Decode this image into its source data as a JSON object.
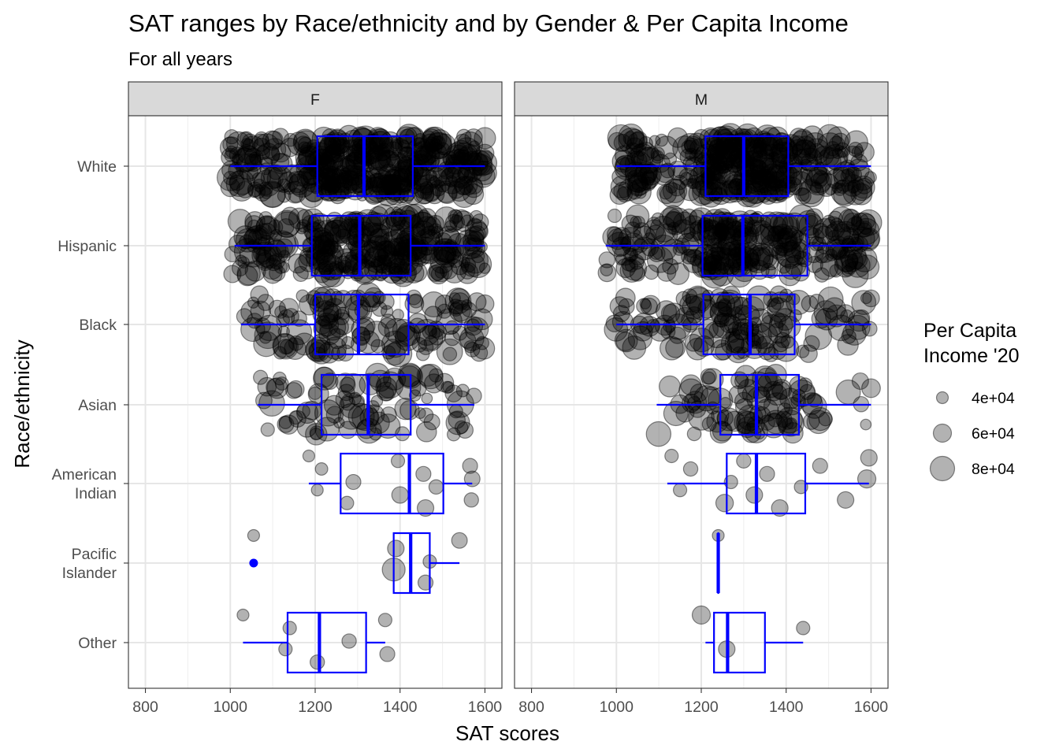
{
  "chart_data": {
    "type": "scatter",
    "overlay": "boxplot",
    "title": "SAT ranges by Race/ethnicity and by Gender & Per Capita Income",
    "subtitle": "For all years",
    "xlabel": "SAT scores",
    "ylabel": "Race/ethnicity",
    "xlim": [
      760,
      1640
    ],
    "x_ticks": [
      800,
      1000,
      1200,
      1400,
      1600
    ],
    "categories": [
      "White",
      "Hispanic",
      "Black",
      "Asian",
      "American Indian",
      "Pacific Islander",
      "Other"
    ],
    "category_labels": [
      [
        "White"
      ],
      [
        "Hispanic"
      ],
      [
        "Black"
      ],
      [
        "Asian"
      ],
      [
        "American",
        "Indian"
      ],
      [
        "Pacific",
        "Islander"
      ],
      [
        "Other"
      ]
    ],
    "grid": true,
    "point_color": "#000000",
    "point_opacity": 0.3,
    "box_color": "#0000ff",
    "legend": {
      "title_lines": [
        "Per Capita",
        "Income '20"
      ],
      "position": "right",
      "entries": [
        {
          "label": "4e+04",
          "value": 40000
        },
        {
          "label": "6e+04",
          "value": 60000
        },
        {
          "label": "8e+04",
          "value": 80000
        }
      ]
    },
    "panels": [
      {
        "name": "F",
        "boxes": [
          {
            "category": "White",
            "whisker_low": 1000,
            "q1": 1205,
            "median": 1315,
            "q3": 1430,
            "whisker_high": 1600,
            "outliers": []
          },
          {
            "category": "Hispanic",
            "whisker_low": 1010,
            "q1": 1192,
            "median": 1305,
            "q3": 1425,
            "whisker_high": 1600,
            "outliers": []
          },
          {
            "category": "Black",
            "whisker_low": 1025,
            "q1": 1200,
            "median": 1302,
            "q3": 1420,
            "whisker_high": 1600,
            "outliers": []
          },
          {
            "category": "Asian",
            "whisker_low": 1065,
            "q1": 1215,
            "median": 1325,
            "q3": 1425,
            "whisker_high": 1575,
            "outliers": []
          },
          {
            "category": "American Indian",
            "whisker_low": 1185,
            "q1": 1260,
            "median": 1422,
            "q3": 1502,
            "whisker_high": 1570,
            "outliers": []
          },
          {
            "category": "Pacific Islander",
            "whisker_low": 1385,
            "q1": 1385,
            "median": 1425,
            "q3": 1470,
            "whisker_high": 1540,
            "outliers": [
              1055
            ]
          },
          {
            "category": "Other",
            "whisker_low": 1030,
            "q1": 1135,
            "median": 1210,
            "q3": 1320,
            "whisker_high": 1365,
            "outliers": []
          }
        ],
        "points": {
          "White": {
            "n": 420,
            "min": 1000,
            "max": 1600
          },
          "Hispanic": {
            "n": 320,
            "min": 1005,
            "max": 1600
          },
          "Black": {
            "n": 150,
            "min": 1025,
            "max": 1600
          },
          "Asian": {
            "n": 95,
            "min": 1060,
            "max": 1580
          },
          "American Indian": {
            "explicit": [
              [
                1185,
                40000
              ],
              [
                1205,
                40000
              ],
              [
                1215,
                42000
              ],
              [
                1275,
                45000
              ],
              [
                1290,
                50000
              ],
              [
                1395,
                45000
              ],
              [
                1400,
                55000
              ],
              [
                1455,
                50000
              ],
              [
                1460,
                55000
              ],
              [
                1485,
                48000
              ],
              [
                1565,
                50000
              ],
              [
                1568,
                48000
              ],
              [
                1570,
                52000
              ]
            ]
          },
          "Pacific Islander": {
            "explicit": [
              [
                1055,
                40000
              ],
              [
                1385,
                75000
              ],
              [
                1390,
                55000
              ],
              [
                1460,
                50000
              ],
              [
                1470,
                45000
              ],
              [
                1540,
                52000
              ]
            ]
          },
          "Other": {
            "explicit": [
              [
                1030,
                40000
              ],
              [
                1130,
                45000
              ],
              [
                1140,
                45000
              ],
              [
                1205,
                48000
              ],
              [
                1280,
                48000
              ],
              [
                1365,
                45000
              ],
              [
                1370,
                50000
              ]
            ]
          }
        }
      },
      {
        "name": "M",
        "boxes": [
          {
            "category": "White",
            "whisker_low": 1000,
            "q1": 1210,
            "median": 1300,
            "q3": 1405,
            "whisker_high": 1600,
            "outliers": []
          },
          {
            "category": "Hispanic",
            "whisker_low": 975,
            "q1": 1203,
            "median": 1298,
            "q3": 1450,
            "whisker_high": 1600,
            "outliers": []
          },
          {
            "category": "Black",
            "whisker_low": 1000,
            "q1": 1205,
            "median": 1315,
            "q3": 1420,
            "whisker_high": 1600,
            "outliers": []
          },
          {
            "category": "Asian",
            "whisker_low": 1095,
            "q1": 1245,
            "median": 1330,
            "q3": 1430,
            "whisker_high": 1600,
            "outliers": []
          },
          {
            "category": "American Indian",
            "whisker_low": 1120,
            "q1": 1260,
            "median": 1330,
            "q3": 1445,
            "whisker_high": 1595,
            "outliers": []
          },
          {
            "category": "Pacific Islander",
            "whisker_low": 1240,
            "q1": 1240,
            "median": 1240,
            "q3": 1240,
            "whisker_high": 1240,
            "outliers": []
          },
          {
            "category": "Other",
            "whisker_low": 1210,
            "q1": 1230,
            "median": 1262,
            "q3": 1350,
            "whisker_high": 1440,
            "outliers": []
          }
        ],
        "points": {
          "White": {
            "n": 380,
            "min": 980,
            "max": 1600
          },
          "Hispanic": {
            "n": 300,
            "min": 975,
            "max": 1600
          },
          "Black": {
            "n": 150,
            "min": 995,
            "max": 1600
          },
          "Asian": {
            "n": 95,
            "min": 1090,
            "max": 1600
          },
          "American Indian": {
            "explicit": [
              [
                1130,
                45000
              ],
              [
                1150,
                45000
              ],
              [
                1175,
                48000
              ],
              [
                1255,
                58000
              ],
              [
                1270,
                45000
              ],
              [
                1300,
                48000
              ],
              [
                1325,
                55000
              ],
              [
                1355,
                50000
              ],
              [
                1385,
                55000
              ],
              [
                1435,
                45000
              ],
              [
                1480,
                50000
              ],
              [
                1540,
                55000
              ],
              [
                1590,
                60000
              ],
              [
                1595,
                55000
              ]
            ]
          },
          "Pacific Islander": {
            "explicit": [
              [
                1240,
                40000
              ]
            ]
          },
          "Other": {
            "explicit": [
              [
                1200,
                60000
              ],
              [
                1260,
                55000
              ],
              [
                1440,
                45000
              ]
            ]
          }
        }
      }
    ]
  }
}
